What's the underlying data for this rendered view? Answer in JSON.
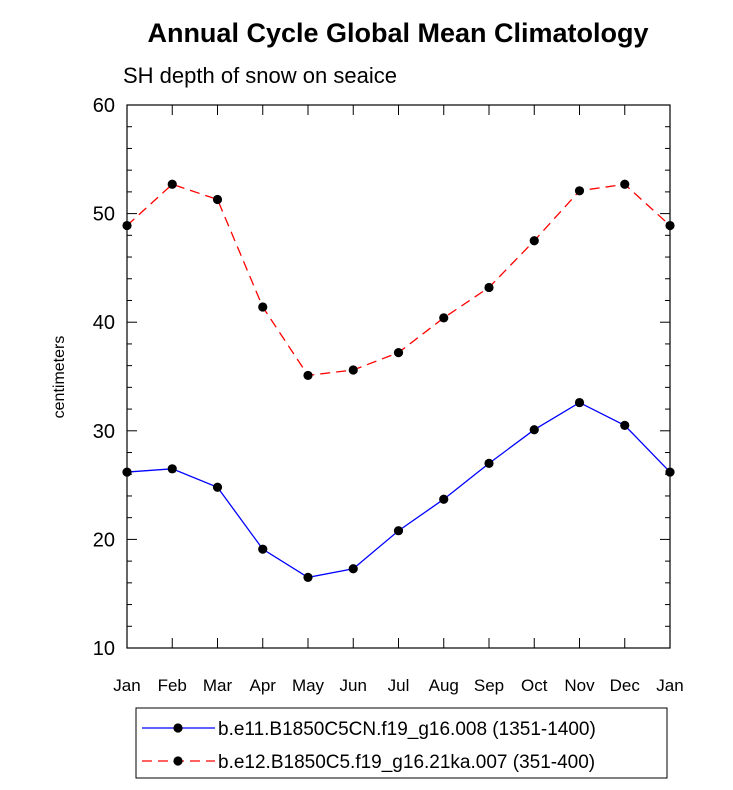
{
  "chart_data": {
    "type": "line",
    "title": "Annual Cycle Global Mean Climatology",
    "subtitle": "SH depth of snow on seaice",
    "xlabel": "",
    "ylabel": "centimeters",
    "ylim": [
      10,
      60
    ],
    "yticks": [
      10,
      20,
      30,
      40,
      50,
      60
    ],
    "categories": [
      "Jan",
      "Feb",
      "Mar",
      "Apr",
      "May",
      "Jun",
      "Jul",
      "Aug",
      "Sep",
      "Oct",
      "Nov",
      "Dec",
      "Jan"
    ],
    "grid": false,
    "legend_position": "bottom",
    "series": [
      {
        "name": "b.e11.B1850C5CN.f19_g16.008 (1351-1400)",
        "color": "#0000ff",
        "line_style": "solid",
        "marker": "dot",
        "values": [
          26.2,
          26.5,
          24.8,
          19.1,
          16.5,
          17.3,
          20.8,
          23.7,
          27.0,
          30.1,
          32.6,
          30.5,
          26.2
        ]
      },
      {
        "name": "b.e12.B1850C5.f19_g16.21ka.007 (351-400)",
        "color": "#ff0000",
        "line_style": "dashed",
        "marker": "dot",
        "values": [
          48.9,
          52.7,
          51.3,
          41.4,
          35.1,
          35.6,
          37.2,
          40.4,
          43.2,
          47.5,
          52.1,
          52.7,
          48.9
        ]
      }
    ]
  }
}
